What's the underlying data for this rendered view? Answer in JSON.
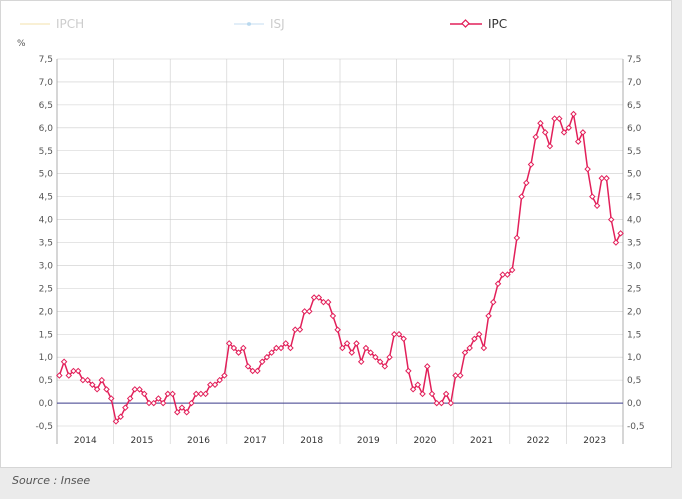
{
  "legend": [
    {
      "label": "IPCH",
      "state": "inactive",
      "color": "#e8c65a"
    },
    {
      "label": "ISJ",
      "state": "inactive",
      "color": "#9ec9e8"
    },
    {
      "label": "IPC",
      "state": "active",
      "color": "#e2205a"
    }
  ],
  "source": "Source : Insee",
  "colors": {
    "ipc": "#e2205a",
    "zero_line": "#3c3c8c",
    "grid": "#cccccc"
  },
  "chart_data": {
    "type": "line",
    "title": "",
    "xlabel": "",
    "ylabel": "%",
    "ylim": [
      -0.5,
      7.5
    ],
    "y_ticks": [
      "7,5",
      "7,0",
      "6,5",
      "6,0",
      "5,5",
      "5,0",
      "4,5",
      "4,0",
      "3,5",
      "3,0",
      "2,5",
      "2,0",
      "1,5",
      "1,0",
      "0,5",
      "0,0",
      "-0,5"
    ],
    "y_ticks_right": [
      "7,5",
      "7,0",
      "6,5",
      "6,0",
      "5,5",
      "5,0",
      "4,5",
      "4,0",
      "3,5",
      "3,0",
      "2,5",
      "2,0",
      "1,5",
      "1,0",
      "0,5",
      "0,0",
      "-0,5"
    ],
    "x_categories": [
      "2014",
      "2015",
      "2016",
      "2017",
      "2018",
      "2019",
      "2020",
      "2021",
      "2022",
      "2023"
    ],
    "grid": true,
    "legend_position": "top",
    "series": [
      {
        "name": "IPC",
        "start": "2014-01",
        "frequency": "monthly",
        "values": [
          0.6,
          0.9,
          0.6,
          0.7,
          0.7,
          0.5,
          0.5,
          0.4,
          0.3,
          0.5,
          0.3,
          0.1,
          -0.4,
          -0.3,
          -0.1,
          0.1,
          0.3,
          0.3,
          0.2,
          0.0,
          0.0,
          0.1,
          0.0,
          0.2,
          0.2,
          -0.2,
          -0.1,
          -0.2,
          0.0,
          0.2,
          0.2,
          0.2,
          0.4,
          0.4,
          0.5,
          0.6,
          1.3,
          1.2,
          1.1,
          1.2,
          0.8,
          0.7,
          0.7,
          0.9,
          1.0,
          1.1,
          1.2,
          1.2,
          1.3,
          1.2,
          1.6,
          1.6,
          2.0,
          2.0,
          2.3,
          2.3,
          2.2,
          2.2,
          1.9,
          1.6,
          1.2,
          1.3,
          1.1,
          1.3,
          0.9,
          1.2,
          1.1,
          1.0,
          0.9,
          0.8,
          1.0,
          1.5,
          1.5,
          1.4,
          0.7,
          0.3,
          0.4,
          0.2,
          0.8,
          0.2,
          0.0,
          0.0,
          0.2,
          0.0,
          0.6,
          0.6,
          1.1,
          1.2,
          1.4,
          1.5,
          1.2,
          1.9,
          2.2,
          2.6,
          2.8,
          2.8,
          2.9,
          3.6,
          4.5,
          4.8,
          5.2,
          5.8,
          6.1,
          5.9,
          5.6,
          6.2,
          6.2,
          5.9,
          6.0,
          6.3,
          5.7,
          5.9,
          5.1,
          4.5,
          4.3,
          4.9,
          4.9,
          4.0,
          3.5,
          3.7
        ]
      }
    ]
  }
}
